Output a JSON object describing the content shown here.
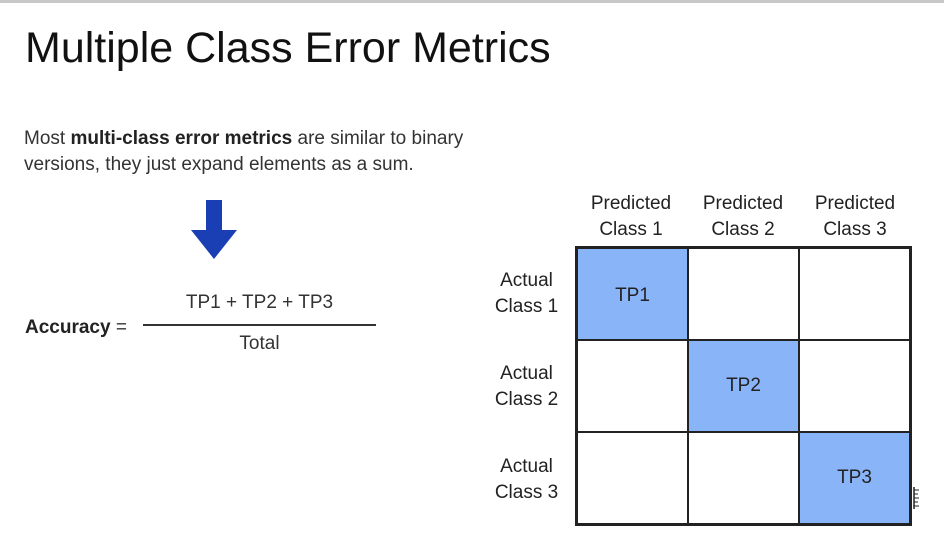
{
  "slide": {
    "title": "Multiple Class Error Metrics",
    "intro": {
      "pre": "Most ",
      "bold": "multi-class error metrics",
      "post": " are similar to binary versions, they just expand elements as a sum."
    },
    "arrow_icon": "down-arrow-icon",
    "arrow_color": "#1a3fb5",
    "accuracy": {
      "label": "Accuracy",
      "equals": " =",
      "numerator": "TP1 + TP2 + TP3",
      "denominator": "Total"
    }
  },
  "matrix": {
    "highlight_color": "#8ab4f8",
    "columns": [
      {
        "line1": "Predicted",
        "line2": "Class 1"
      },
      {
        "line1": "Predicted",
        "line2": "Class 2"
      },
      {
        "line1": "Predicted",
        "line2": "Class 3"
      }
    ],
    "rows": [
      {
        "line1": "Actual",
        "line2": "Class 1"
      },
      {
        "line1": "Actual",
        "line2": "Class 2"
      },
      {
        "line1": "Actual",
        "line2": "Class 3"
      }
    ],
    "cells": [
      [
        "TP1",
        "",
        ""
      ],
      [
        "",
        "TP2",
        ""
      ],
      [
        "",
        "",
        "TP3"
      ]
    ]
  }
}
